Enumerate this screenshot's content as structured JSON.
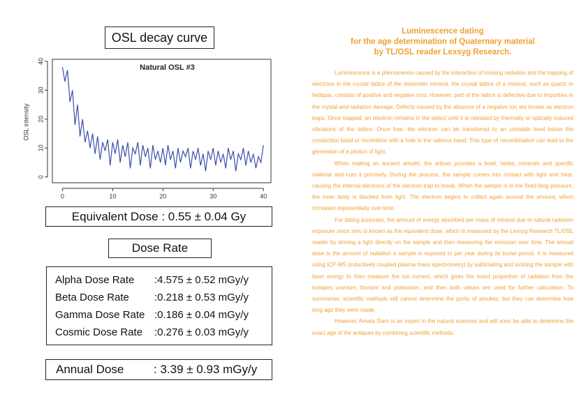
{
  "chart_heading": "OSL decay curve",
  "chart_data": {
    "type": "line",
    "title": "Natural OSL #3",
    "y_label": "OSL intensity",
    "x": [
      0,
      0.5,
      1,
      1.5,
      2,
      2.5,
      3,
      3.5,
      4,
      4.5,
      5,
      5.5,
      6,
      6.5,
      7,
      7.5,
      8,
      8.5,
      9,
      9.5,
      10,
      10.5,
      11,
      11.5,
      12,
      12.5,
      13,
      13.5,
      14,
      14.5,
      15,
      15.5,
      16,
      16.5,
      17,
      17.5,
      18,
      18.5,
      19,
      19.5,
      20,
      20.5,
      21,
      21.5,
      22,
      22.5,
      23,
      23.5,
      24,
      24.5,
      25,
      25.5,
      26,
      26.5,
      27,
      27.5,
      28,
      28.5,
      29,
      29.5,
      30,
      30.5,
      31,
      31.5,
      32,
      32.5,
      33,
      33.5,
      34,
      34.5,
      35,
      35.5,
      36,
      36.5,
      37,
      37.5,
      38,
      38.5,
      39,
      39.5,
      40
    ],
    "series": [
      {
        "color": "#3c4fa6",
        "values": [
          38,
          33,
          37,
          26,
          30,
          18,
          25,
          14,
          20,
          12,
          16,
          10,
          15,
          8,
          14,
          6,
          12,
          9,
          13,
          4,
          12,
          8,
          13,
          5,
          11,
          7,
          12,
          3,
          10,
          8,
          12,
          4,
          11,
          7,
          10,
          3,
          11,
          6,
          9,
          5,
          10,
          4,
          11,
          6,
          9,
          3,
          10,
          5,
          9,
          7,
          10,
          3,
          9,
          6,
          10,
          4,
          8,
          2,
          9,
          6,
          10,
          4,
          9,
          5,
          8,
          3,
          10,
          6,
          9,
          2,
          8,
          6,
          10,
          4,
          9,
          5,
          8,
          3,
          7,
          5,
          11
        ]
      }
    ],
    "xlim": [
      -2,
      41.5
    ],
    "ylim": [
      -2,
      40.7
    ],
    "xticks": [
      0,
      10,
      20,
      30,
      40
    ],
    "yticks": [
      0,
      10,
      20,
      30,
      40
    ]
  },
  "equivalent_dose": {
    "label": "Equivalent Dose :",
    "value": "0.55 ± 0.04 Gy"
  },
  "dose_rate": {
    "title": "Dose Rate",
    "rows": [
      [
        "Alpha Dose Rate",
        ":4.575 ± 0.52  mGy/y"
      ],
      [
        "Beta Dose Rate",
        ":0.218 ± 0.53  mGy/y"
      ],
      [
        "Gamma Dose Rate",
        ":0.186 ± 0.04  mGy/y"
      ],
      [
        "Cosmic Dose Rate",
        ":0.276 ± 0.03  mGy/y"
      ]
    ]
  },
  "annual_dose": {
    "label": "Annual Dose",
    "value": ": 3.39 ± 0.93 mGy/y"
  },
  "article": {
    "heading": [
      "Luminescence dating",
      "for the age determination of Quaternary material",
      "by TL/OSL reader Lexsyg Research."
    ],
    "paragraphs": [
      "Luminescence is a phenomenon caused by the interaction of ionising radiation and the trapping of electrons in the crystal lattice of the dosimeter mineral. the crystal lattice of a mineral, such as quartz or feldspar, consists of positive and negative ions. However, part of the lattice is defective due to impurities in the crystal and radiation damage. Defects caused by the absence of a negative ion are known as electron traps. Once trapped, an electron remains in the defect until it is released by thermally or optically induced vibrations of the lattice. Once free, the electron can be transferred to an unstable level below the conduction band or recombine with a hole in the valence band. This type of recombination can lead to the generation of a photon of light.",
      "When making an ancient amulet, the artisan provides a bowl, herbs, minerals and specific material and cuts it precisely. During the process, the sample comes into contact with light and heat, causing the internal electrons of the electron trap to break. When the sample is in the fixed blog pressure, the inner body is blocked from light. The electron begins to collect again around the amount, which increases exponentially over time.",
      "For dating purposes, the amount of energy absorbed per mass of mineral due to natural radiation exposure since zero is known as the equivalent dose, which is measured by the Lexsyg Research TL/OSL reader by shining a light directly on the sample and then measuring the emission over time. The annual dose is the amount of radiation a sample is exposed to per year during its burial period. It is measured using ICP-MS (inductively coupled plasma mass spectrometry) by sublimating and ionizing the sample with laser energy to then measure the ion current, which gives the exact proportion of radiation from the isotopes uranium, thorium and potassium, and then both values are used for further calculation. To summarise, scientific methods still cannot determine the purity of amulets, but they can determine how long ago they were made.",
      "However, Amata Siam is an expert in the natural sciences and will soon be able to determine the exact age of the antiques by combining scientific methods."
    ]
  }
}
